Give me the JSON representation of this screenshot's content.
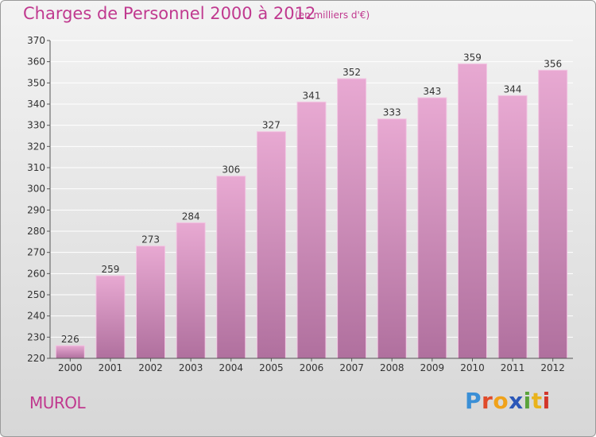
{
  "title": "Charges de Personnel 2000 à 2012",
  "subtitle": "(en milliers d'€)",
  "commune": "MUROL",
  "logo": {
    "text": "Proxiti",
    "letters": [
      {
        "ch": "P",
        "color": "#3a8fd6"
      },
      {
        "ch": "r",
        "color": "#e04b2a"
      },
      {
        "ch": "o",
        "color": "#f0a21a"
      },
      {
        "ch": "x",
        "color": "#2b57b8"
      },
      {
        "ch": "i",
        "color": "#5aa33a"
      },
      {
        "ch": "t",
        "color": "#e9b31c"
      },
      {
        "ch": "i",
        "color": "#d2352a"
      }
    ]
  },
  "colors": {
    "accent": "#c0398f",
    "bar_top": "#e8a9d2",
    "bar_bottom": "#b0709e",
    "bar_edge": "#f2c7e3",
    "grid": "#ffffff",
    "text": "#333333"
  },
  "chart_data": {
    "type": "bar",
    "categories": [
      "2000",
      "2001",
      "2002",
      "2003",
      "2004",
      "2005",
      "2006",
      "2007",
      "2008",
      "2009",
      "2010",
      "2011",
      "2012"
    ],
    "values": [
      226,
      259,
      273,
      284,
      306,
      327,
      341,
      352,
      333,
      343,
      359,
      344,
      356
    ],
    "title": "Charges de Personnel 2000 à 2012",
    "xlabel": "",
    "ylabel": "",
    "ylim": [
      220,
      370
    ],
    "yticks": [
      220,
      230,
      240,
      250,
      260,
      270,
      280,
      290,
      300,
      310,
      320,
      330,
      340,
      350,
      360,
      370
    ],
    "grid": true,
    "data_labels": true
  }
}
